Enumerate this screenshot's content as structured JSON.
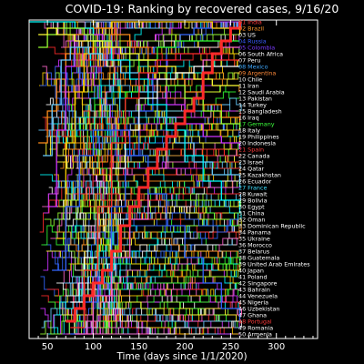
{
  "chart_data": {
    "type": "line",
    "title": "COVID-19: Ranking by recovered cases, 9/16/20",
    "xlabel": "Time (days since 1/1/2020)",
    "ylabel": "",
    "xlim": [
      30,
      345
    ],
    "ylim_rank": [
      1,
      50
    ],
    "x_ticks": [
      50,
      100,
      150,
      200,
      250,
      300
    ],
    "x_tick_labels": [
      "50",
      "100",
      "150",
      "200",
      "250",
      "300"
    ],
    "grid": false,
    "background": "#000000",
    "legend_position": "right",
    "legend_note": "entries listed in final rank order at day 260",
    "legend": [
      {
        "label": "01 India",
        "color": "#ff3b3b"
      },
      {
        "label": "02 Brazil",
        "color": "#ff9a2e"
      },
      {
        "label": "03 US",
        "color": "#ffffff"
      },
      {
        "label": "04 Russia",
        "color": "#3a5bff"
      },
      {
        "label": "05 Colombia",
        "color": "#7a3cff"
      },
      {
        "label": "06 South Africa",
        "color": "#ffffff"
      },
      {
        "label": "07 Peru",
        "color": "#ffffff"
      },
      {
        "label": "08 Mexico",
        "color": "#3fa9ff"
      },
      {
        "label": "09 Argentina",
        "color": "#ff8a3a"
      },
      {
        "label": "10 Chile",
        "color": "#ffffff"
      },
      {
        "label": "11 Iran",
        "color": "#ffffff"
      },
      {
        "label": "12 Saudi Arabia",
        "color": "#ffffff"
      },
      {
        "label": "13 Pakistan",
        "color": "#ffffff"
      },
      {
        "label": "14 Turkey",
        "color": "#ffffff"
      },
      {
        "label": "15 Bangladesh",
        "color": "#ffffff"
      },
      {
        "label": "16 Iraq",
        "color": "#ffffff"
      },
      {
        "label": "17 Germany",
        "color": "#3cff3c"
      },
      {
        "label": "18 Italy",
        "color": "#ffffff"
      },
      {
        "label": "19 Philippines",
        "color": "#ffffff"
      },
      {
        "label": "20 Indonesia",
        "color": "#ffffff"
      },
      {
        "label": "21 Spain",
        "color": "#ff3b3b"
      },
      {
        "label": "22 Canada",
        "color": "#ffffff"
      },
      {
        "label": "23 Israel",
        "color": "#ffffff"
      },
      {
        "label": "24 Qatar",
        "color": "#ffffff"
      },
      {
        "label": "25 Kazakhstan",
        "color": "#ffffff"
      },
      {
        "label": "26 Ecuador",
        "color": "#ffffff"
      },
      {
        "label": "27 France",
        "color": "#3fe0ff"
      },
      {
        "label": "28 Kuwait",
        "color": "#ffffff"
      },
      {
        "label": "29 Bolivia",
        "color": "#ffffff"
      },
      {
        "label": "30 Egypt",
        "color": "#ffffff"
      },
      {
        "label": "31 China",
        "color": "#ffffff"
      },
      {
        "label": "32 Oman",
        "color": "#ffffff"
      },
      {
        "label": "33 Dominican Republic",
        "color": "#ffffff"
      },
      {
        "label": "34 Panama",
        "color": "#ffffff"
      },
      {
        "label": "35 Ukraine",
        "color": "#ffffff"
      },
      {
        "label": "36 Morocco",
        "color": "#ffffff"
      },
      {
        "label": "37 Belarus",
        "color": "#ffffff"
      },
      {
        "label": "38 Guatemala",
        "color": "#ffffff"
      },
      {
        "label": "39 United Arab Emirates",
        "color": "#ffffff"
      },
      {
        "label": "40 Japan",
        "color": "#ffffff"
      },
      {
        "label": "41 Poland",
        "color": "#ffffff"
      },
      {
        "label": "42 Singapore",
        "color": "#ffffff"
      },
      {
        "label": "43 Bahrain",
        "color": "#ffffff"
      },
      {
        "label": "44 Venezuela",
        "color": "#ffffff"
      },
      {
        "label": "45 Nigeria",
        "color": "#ffffff"
      },
      {
        "label": "46 Uzbekistan",
        "color": "#ffffff"
      },
      {
        "label": "47 Ghana",
        "color": "#ffffff"
      },
      {
        "label": "48 Portugal",
        "color": "#ff3b3b"
      },
      {
        "label": "49 Romania",
        "color": "#ffffff"
      },
      {
        "label": "50 Armenia",
        "color": "#ffffff"
      }
    ],
    "palette": [
      "#ff2a2a",
      "#ff8c1a",
      "#ffff33",
      "#33ff33",
      "#00ffff",
      "#3366ff",
      "#cc33ff",
      "#ffffff",
      "#ff66cc",
      "#99ff33",
      "#ffcc00",
      "#66ccff"
    ],
    "highlight": {
      "name": "India",
      "color": "#ff2a2a"
    },
    "series": [
      {
        "name": "India",
        "x": [
          70,
          80,
          90,
          100,
          110,
          120,
          130,
          140,
          150,
          160,
          170,
          180,
          190,
          200,
          210,
          220,
          230,
          240,
          250,
          260
        ],
        "y": [
          48,
          46,
          44,
          42,
          40,
          37,
          33,
          30,
          27,
          24,
          21,
          19,
          17,
          15,
          13,
          9,
          6,
          4,
          2,
          1
        ]
      },
      {
        "name": "Brazil",
        "x": [
          75,
          90,
          105,
          120,
          135,
          150,
          165,
          180,
          195,
          210,
          225,
          240,
          260
        ],
        "y": [
          50,
          45,
          38,
          30,
          22,
          15,
          9,
          5,
          3,
          2,
          2,
          2,
          2
        ]
      },
      {
        "name": "US",
        "x": [
          60,
          70,
          80,
          90,
          100,
          110,
          120,
          135,
          150,
          170,
          190,
          210,
          230,
          260
        ],
        "y": [
          35,
          20,
          12,
          6,
          3,
          2,
          1,
          1,
          1,
          1,
          1,
          1,
          2,
          3
        ]
      },
      {
        "name": "Russia",
        "x": [
          75,
          90,
          105,
          120,
          135,
          150,
          170,
          190,
          210,
          230,
          260
        ],
        "y": [
          48,
          40,
          30,
          20,
          12,
          7,
          5,
          4,
          4,
          4,
          4
        ]
      },
      {
        "name": "Colombia",
        "x": [
          80,
          100,
          120,
          140,
          160,
          180,
          200,
          220,
          240,
          260
        ],
        "y": [
          50,
          44,
          38,
          32,
          24,
          16,
          10,
          7,
          5,
          5
        ]
      },
      {
        "name": "Germany",
        "x": [
          40,
          50,
          60,
          70,
          80,
          90,
          100,
          120,
          140,
          160,
          180,
          200,
          220,
          240,
          260
        ],
        "y": [
          20,
          15,
          10,
          6,
          3,
          2,
          2,
          3,
          5,
          8,
          10,
          12,
          14,
          16,
          17
        ]
      },
      {
        "name": "Spain",
        "x": [
          50,
          60,
          70,
          80,
          90,
          100,
          110,
          120,
          140,
          160,
          180,
          200,
          220,
          240,
          260
        ],
        "y": [
          30,
          18,
          8,
          4,
          3,
          3,
          4,
          5,
          7,
          10,
          14,
          17,
          19,
          20,
          21
        ]
      },
      {
        "name": "France",
        "x": [
          45,
          55,
          65,
          75,
          85,
          95,
          110,
          130,
          150,
          170,
          190,
          210,
          230,
          260
        ],
        "y": [
          22,
          14,
          7,
          5,
          5,
          6,
          7,
          9,
          12,
          16,
          20,
          23,
          25,
          27
        ]
      },
      {
        "name": "China",
        "x": [
          30,
          40,
          50,
          60,
          70,
          80,
          100,
          120,
          140,
          160,
          180,
          200,
          220,
          240,
          260
        ],
        "y": [
          1,
          1,
          1,
          1,
          1,
          2,
          4,
          7,
          10,
          14,
          18,
          22,
          26,
          29,
          31
        ]
      },
      {
        "name": "Italy",
        "x": [
          40,
          50,
          60,
          70,
          80,
          90,
          100,
          120,
          140,
          160,
          180,
          200,
          220,
          240,
          260
        ],
        "y": [
          5,
          3,
          2,
          2,
          2,
          3,
          4,
          5,
          7,
          9,
          11,
          13,
          15,
          17,
          18
        ]
      },
      {
        "name": "Iran",
        "x": [
          40,
          50,
          60,
          70,
          80,
          90,
          110,
          130,
          150,
          170,
          190,
          210,
          230,
          260
        ],
        "y": [
          3,
          2,
          3,
          3,
          4,
          4,
          5,
          6,
          7,
          8,
          9,
          10,
          11,
          11
        ]
      },
      {
        "name": "Mexico",
        "x": [
          75,
          90,
          105,
          120,
          135,
          150,
          170,
          190,
          210,
          230,
          260
        ],
        "y": [
          45,
          38,
          30,
          24,
          18,
          13,
          10,
          9,
          8,
          8,
          8
        ]
      },
      {
        "name": "Peru",
        "x": [
          75,
          90,
          105,
          120,
          135,
          150,
          170,
          190,
          210,
          230,
          260
        ],
        "y": [
          49,
          40,
          30,
          20,
          13,
          9,
          7,
          6,
          6,
          7,
          7
        ]
      },
      {
        "name": "Portugal",
        "x": [
          55,
          70,
          85,
          100,
          120,
          140,
          160,
          180,
          200,
          220,
          240,
          260
        ],
        "y": [
          40,
          30,
          22,
          18,
          18,
          22,
          28,
          33,
          38,
          42,
          46,
          48
        ]
      }
    ]
  }
}
